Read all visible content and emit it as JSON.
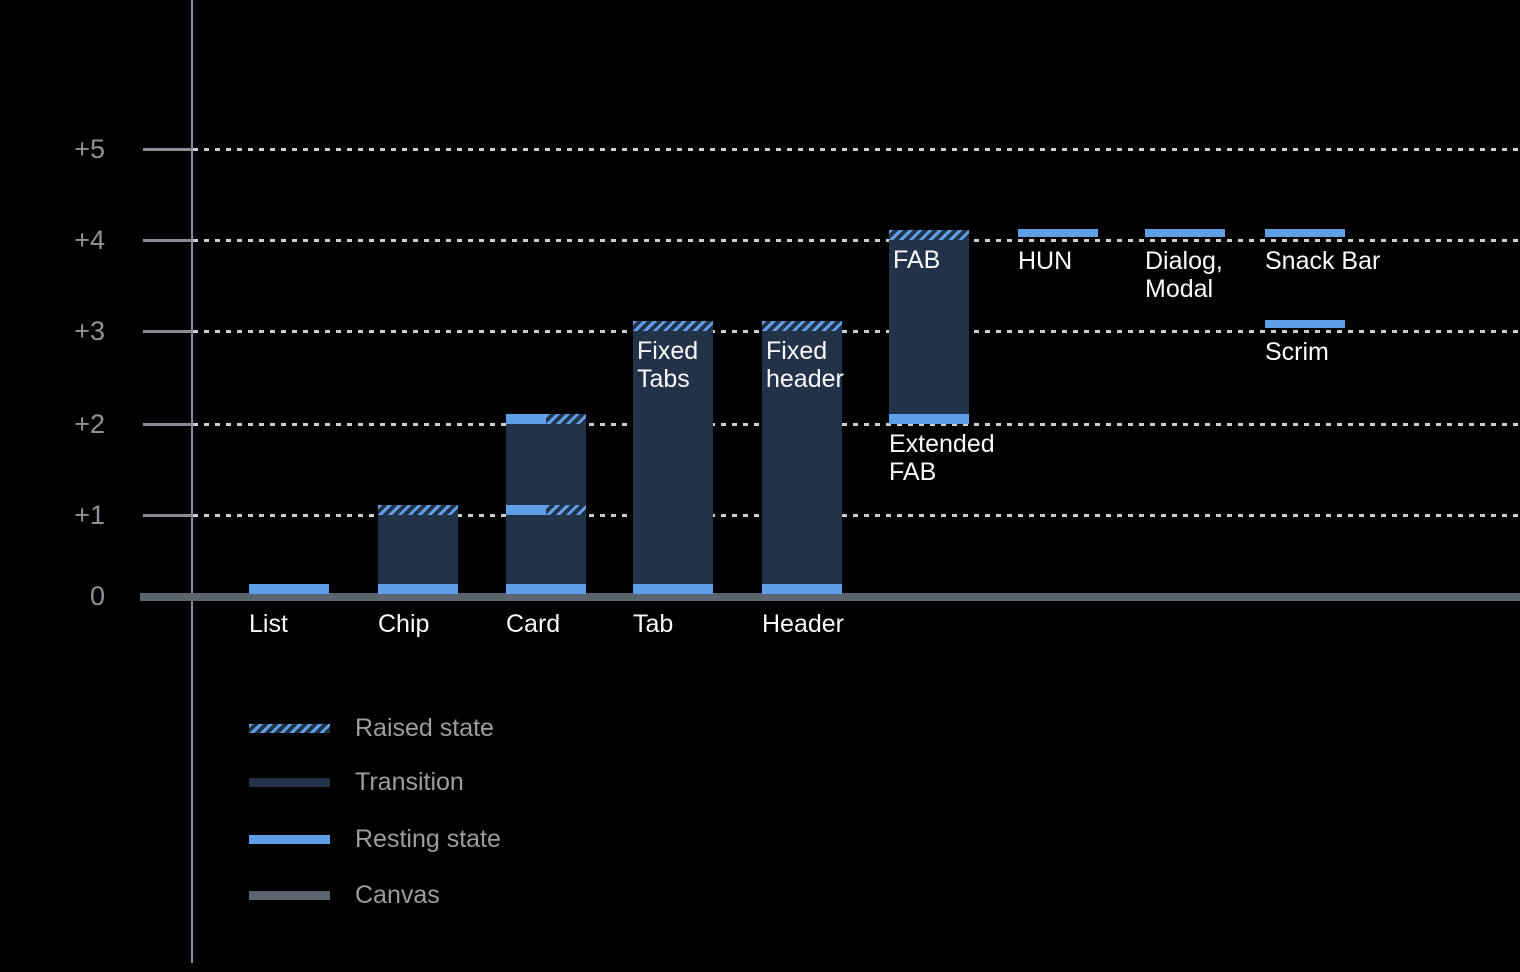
{
  "colors": {
    "background": "#000000",
    "resting_state": "#5F9EE8",
    "transition": "#223349",
    "canvas": "#5C6470",
    "grid": "#C9CDD2",
    "axis": "#878C96",
    "tick_text": "#909296",
    "legend_text": "#9B9DA0",
    "bar_text": "#FAFAFA"
  },
  "chart_data": {
    "type": "bar",
    "title": "",
    "xlabel": "",
    "ylabel": "",
    "description": "Material Design elevation diagram: resting, raised and transition elevation levels of UI components above the canvas",
    "y_axis": {
      "range": [
        0,
        5
      ],
      "grid": "dotted horizontal lines at each +1 step"
    },
    "y_ticks": [
      {
        "label": "+5",
        "level": 5
      },
      {
        "label": "+4",
        "level": 4
      },
      {
        "label": "+3",
        "level": 3
      },
      {
        "label": "+2",
        "level": 2
      },
      {
        "label": "+1",
        "level": 1
      },
      {
        "label": "0",
        "level": 0
      }
    ],
    "components": [
      {
        "id": "list",
        "name": "List",
        "name_lines": [
          "List"
        ],
        "label_placement": "baseline",
        "resting_elevation": 0
      },
      {
        "id": "chip",
        "name": "Chip",
        "name_lines": [
          "Chip"
        ],
        "label_placement": "baseline",
        "resting_elevation": 0,
        "raised_elevation": 1,
        "transition": [
          0,
          1
        ]
      },
      {
        "id": "card",
        "name": "Card",
        "name_lines": [
          "Card"
        ],
        "label_placement": "baseline",
        "resting_elevation": 0,
        "intermediate_levels": [
          1,
          2
        ],
        "transition": [
          0,
          2
        ]
      },
      {
        "id": "tab",
        "name": "Tab",
        "name_lines": [
          "Tab"
        ],
        "label_placement": "baseline",
        "resting_elevation": 0,
        "raised_elevation": 3,
        "transition": [
          0,
          3
        ],
        "bar_caption": [
          "Fixed",
          "Tabs"
        ]
      },
      {
        "id": "header",
        "name": "Header",
        "name_lines": [
          "Header"
        ],
        "label_placement": "baseline",
        "resting_elevation": 0,
        "raised_elevation": 3,
        "transition": [
          0,
          3
        ],
        "bar_caption": [
          "Fixed",
          "header"
        ]
      },
      {
        "id": "fab",
        "name": "Extended FAB",
        "name_lines": [
          "Extended",
          "FAB"
        ],
        "label_placement": "below_bar",
        "resting_elevation": 2,
        "raised_elevation": 4,
        "transition": [
          2,
          4
        ],
        "bar_caption": [
          "FAB"
        ]
      },
      {
        "id": "hun",
        "name": "HUN",
        "name_lines": [
          "HUN"
        ],
        "label_placement": "below_band",
        "floating": true,
        "resting_elevation": 4
      },
      {
        "id": "dialog-modal",
        "name": "Dialog, Modal",
        "name_lines": [
          "Dialog,",
          "Modal"
        ],
        "label_placement": "below_band",
        "floating": true,
        "resting_elevation": 4
      },
      {
        "id": "snack-bar",
        "name": "Snack Bar",
        "name_lines": [
          "Snack Bar"
        ],
        "label_placement": "below_band",
        "floating": true,
        "resting_elevation": 4
      },
      {
        "id": "scrim",
        "name": "Scrim",
        "name_lines": [
          "Scrim"
        ],
        "label_placement": "below_band",
        "floating": true,
        "resting_elevation": 3
      }
    ],
    "legend": {
      "position": "bottom-left",
      "items": [
        {
          "id": "raised",
          "label": "Raised state"
        },
        {
          "id": "transition",
          "label": "Transition"
        },
        {
          "id": "resting",
          "label": "Resting state"
        },
        {
          "id": "canvas",
          "label": "Canvas"
        }
      ]
    }
  }
}
